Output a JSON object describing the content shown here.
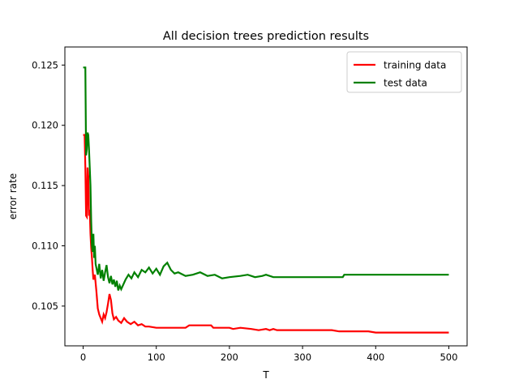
{
  "chart_data": {
    "type": "line",
    "title": "All decision trees prediction results",
    "xlabel": "T",
    "ylabel": "error rate",
    "xlim": [
      -25,
      525
    ],
    "ylim": [
      0.1017,
      0.1265
    ],
    "xticks": [
      0,
      100,
      200,
      300,
      400,
      500
    ],
    "yticks": [
      0.105,
      0.11,
      0.115,
      0.12,
      0.125
    ],
    "ytick_labels": [
      "0.105",
      "0.110",
      "0.115",
      "0.120",
      "0.125"
    ],
    "grid": false,
    "legend_position": "top-right",
    "series": [
      {
        "name": "training data",
        "color": "#ff0000",
        "points": [
          [
            0,
            0.1192
          ],
          [
            2,
            0.1192
          ],
          [
            3,
            0.1165
          ],
          [
            4,
            0.1125
          ],
          [
            5,
            0.1124
          ],
          [
            6,
            0.1165
          ],
          [
            7,
            0.1158
          ],
          [
            8,
            0.1125
          ],
          [
            9,
            0.113
          ],
          [
            10,
            0.111
          ],
          [
            11,
            0.1098
          ],
          [
            12,
            0.109
          ],
          [
            13,
            0.108
          ],
          [
            14,
            0.1072
          ],
          [
            16,
            0.1076
          ],
          [
            18,
            0.1063
          ],
          [
            20,
            0.1048
          ],
          [
            22,
            0.1043
          ],
          [
            24,
            0.104
          ],
          [
            26,
            0.1037
          ],
          [
            28,
            0.1043
          ],
          [
            30,
            0.104
          ],
          [
            32,
            0.1045
          ],
          [
            34,
            0.1052
          ],
          [
            36,
            0.106
          ],
          [
            38,
            0.1055
          ],
          [
            40,
            0.1044
          ],
          [
            42,
            0.1039
          ],
          [
            45,
            0.1041
          ],
          [
            48,
            0.1038
          ],
          [
            52,
            0.1036
          ],
          [
            56,
            0.104
          ],
          [
            60,
            0.1037
          ],
          [
            65,
            0.1035
          ],
          [
            70,
            0.1037
          ],
          [
            75,
            0.1034
          ],
          [
            80,
            0.1035
          ],
          [
            85,
            0.1033
          ],
          [
            90,
            0.1033
          ],
          [
            100,
            0.1032
          ],
          [
            140,
            0.1032
          ],
          [
            145,
            0.1034
          ],
          [
            175,
            0.1034
          ],
          [
            178,
            0.1032
          ],
          [
            200,
            0.1032
          ],
          [
            205,
            0.1031
          ],
          [
            215,
            0.1032
          ],
          [
            230,
            0.1031
          ],
          [
            240,
            0.103
          ],
          [
            250,
            0.1031
          ],
          [
            255,
            0.103
          ],
          [
            260,
            0.1031
          ],
          [
            265,
            0.103
          ],
          [
            340,
            0.103
          ],
          [
            350,
            0.1029
          ],
          [
            380,
            0.1029
          ],
          [
            390,
            0.1029
          ],
          [
            400,
            0.1028
          ],
          [
            500,
            0.1028
          ]
        ]
      },
      {
        "name": "test data",
        "color": "#008000",
        "points": [
          [
            0,
            0.1248
          ],
          [
            3,
            0.1248
          ],
          [
            4,
            0.1175
          ],
          [
            5,
            0.118
          ],
          [
            6,
            0.1194
          ],
          [
            7,
            0.1192
          ],
          [
            8,
            0.118
          ],
          [
            9,
            0.1165
          ],
          [
            10,
            0.115
          ],
          [
            11,
            0.112
          ],
          [
            12,
            0.11
          ],
          [
            13,
            0.1095
          ],
          [
            14,
            0.111
          ],
          [
            15,
            0.109
          ],
          [
            16,
            0.11
          ],
          [
            17,
            0.1085
          ],
          [
            18,
            0.1082
          ],
          [
            20,
            0.1076
          ],
          [
            22,
            0.1085
          ],
          [
            24,
            0.1073
          ],
          [
            26,
            0.108
          ],
          [
            28,
            0.1071
          ],
          [
            30,
            0.1078
          ],
          [
            32,
            0.1084
          ],
          [
            34,
            0.1074
          ],
          [
            36,
            0.1069
          ],
          [
            38,
            0.1075
          ],
          [
            40,
            0.1068
          ],
          [
            42,
            0.1072
          ],
          [
            44,
            0.1066
          ],
          [
            46,
            0.1071
          ],
          [
            48,
            0.1063
          ],
          [
            50,
            0.1067
          ],
          [
            52,
            0.1064
          ],
          [
            55,
            0.1068
          ],
          [
            58,
            0.1072
          ],
          [
            62,
            0.1076
          ],
          [
            66,
            0.1073
          ],
          [
            70,
            0.1078
          ],
          [
            75,
            0.1074
          ],
          [
            80,
            0.108
          ],
          [
            85,
            0.1078
          ],
          [
            90,
            0.1082
          ],
          [
            95,
            0.1077
          ],
          [
            100,
            0.1081
          ],
          [
            105,
            0.1076
          ],
          [
            110,
            0.1083
          ],
          [
            115,
            0.1086
          ],
          [
            120,
            0.108
          ],
          [
            125,
            0.1077
          ],
          [
            130,
            0.1078
          ],
          [
            140,
            0.1075
          ],
          [
            150,
            0.1076
          ],
          [
            160,
            0.1078
          ],
          [
            170,
            0.1075
          ],
          [
            180,
            0.1076
          ],
          [
            190,
            0.1073
          ],
          [
            200,
            0.1074
          ],
          [
            215,
            0.1075
          ],
          [
            225,
            0.1076
          ],
          [
            235,
            0.1074
          ],
          [
            245,
            0.1075
          ],
          [
            250,
            0.1076
          ],
          [
            260,
            0.1074
          ],
          [
            355,
            0.1074
          ],
          [
            357,
            0.1076
          ],
          [
            500,
            0.1076
          ]
        ]
      }
    ]
  }
}
